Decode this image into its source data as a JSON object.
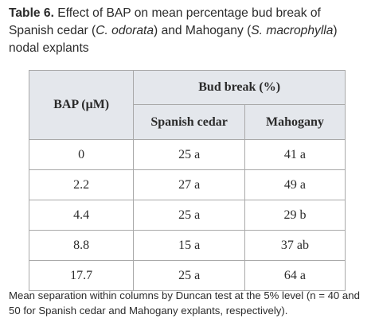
{
  "caption": {
    "label": "Table 6.",
    "part1": " Effect of BAP on mean percentage bud break of Spanish cedar (",
    "species1": "C. odorata",
    "part2": ") and Mahogany (",
    "species2": "S. macrophylla",
    "part3": ") nodal explants"
  },
  "table": {
    "header_bap": "BAP (μM)",
    "header_group": "Bud break (%)",
    "columns": [
      "Spanish cedar",
      "Mahogany"
    ],
    "rows": [
      {
        "bap": "0",
        "cedar": "25 a",
        "mahogany": "41 a"
      },
      {
        "bap": "2.2",
        "cedar": "27 a",
        "mahogany": "49 a"
      },
      {
        "bap": "4.4",
        "cedar": "25 a",
        "mahogany": "29 b"
      },
      {
        "bap": "8.8",
        "cedar": "15 a",
        "mahogany": "37 ab"
      },
      {
        "bap": "17.7",
        "cedar": "25 a",
        "mahogany": "64 a"
      }
    ]
  },
  "footnote": "Mean separation within columns by Duncan test at the 5% level (n = 40 and 50 for Spanish cedar and Mahogany explants, respectively).",
  "colors": {
    "header_bg": "#e4e7ec",
    "border": "#a9a9a9",
    "text": "#2b2b2b"
  }
}
